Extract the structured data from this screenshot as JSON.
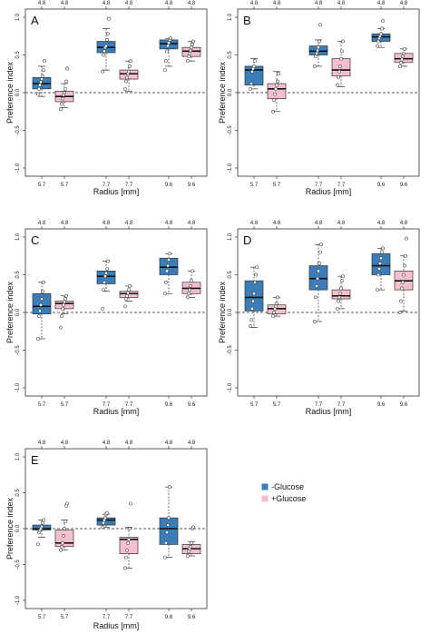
{
  "colors": {
    "minus_glucose": "#3b7db8",
    "plus_glucose": "#f6bfcd",
    "frame": "#333333"
  },
  "legend": {
    "entries": [
      "-Glucose",
      "+Glucose"
    ]
  },
  "chart_data": [
    {
      "type": "box",
      "panel_label": "A",
      "x_categories": [
        "5.7",
        "5.7",
        "7.7",
        "7.7",
        "9.6",
        "9.6"
      ],
      "top_categories": [
        "4.8",
        "4.8",
        "4.8",
        "4.8",
        "4.8",
        "4.8"
      ],
      "xlabel": "Radius [mm]",
      "ylabel": "Preference index",
      "ylim": [
        -1,
        1
      ],
      "yticks": [
        -1.0,
        -0.5,
        0.0,
        0.5,
        1.0
      ],
      "reference_line": 0,
      "boxes": [
        {
          "series": "-Glucose",
          "min": -0.05,
          "q1": 0.05,
          "median": 0.12,
          "q3": 0.2,
          "max": 0.35,
          "points": [
            -0.02,
            0.05,
            0.1,
            0.14,
            0.18,
            0.22,
            0.3,
            0.42
          ]
        },
        {
          "series": "+Glucose",
          "min": -0.2,
          "q1": -0.12,
          "median": -0.05,
          "q3": 0.02,
          "max": 0.12,
          "points": [
            -0.22,
            -0.15,
            -0.08,
            -0.03,
            0.0,
            0.05,
            0.15,
            0.32
          ]
        },
        {
          "series": "-Glucose",
          "min": 0.3,
          "q1": 0.53,
          "median": 0.6,
          "q3": 0.68,
          "max": 0.85,
          "points": [
            0.28,
            0.5,
            0.55,
            0.6,
            0.62,
            0.7,
            0.78,
            0.98
          ]
        },
        {
          "series": "+Glucose",
          "min": 0.02,
          "q1": 0.18,
          "median": 0.25,
          "q3": 0.3,
          "max": 0.42,
          "points": [
            0.05,
            0.15,
            0.2,
            0.25,
            0.28,
            0.35,
            0.42
          ]
        },
        {
          "series": "-Glucose",
          "min": 0.35,
          "q1": 0.58,
          "median": 0.65,
          "q3": 0.7,
          "max": 0.72,
          "points": [
            0.3,
            0.42,
            0.55,
            0.62,
            0.66,
            0.7,
            0.72
          ]
        },
        {
          "series": "+Glucose",
          "min": 0.42,
          "q1": 0.48,
          "median": 0.55,
          "q3": 0.6,
          "max": 0.68,
          "points": [
            0.42,
            0.48,
            0.52,
            0.56,
            0.6,
            0.64,
            0.68
          ]
        }
      ]
    },
    {
      "type": "box",
      "panel_label": "B",
      "x_categories": [
        "5.7",
        "5.7",
        "7.7",
        "7.7",
        "9.6",
        "9.6"
      ],
      "top_categories": [
        "4.8",
        "4.8",
        "4.8",
        "4.8",
        "4.8",
        "4.8"
      ],
      "xlabel": "Radius [mm]",
      "ylabel": "Preference index",
      "ylim": [
        -1,
        1
      ],
      "yticks": [
        -1.0,
        -0.5,
        0.0,
        0.5,
        1.0
      ],
      "reference_line": 0,
      "boxes": [
        {
          "series": "-Glucose",
          "min": 0.05,
          "q1": 0.1,
          "median": 0.3,
          "q3": 0.35,
          "max": 0.45,
          "points": [
            0.05,
            0.12,
            0.28,
            0.32,
            0.35,
            0.42
          ]
        },
        {
          "series": "+Glucose",
          "min": -0.25,
          "q1": -0.08,
          "median": 0.05,
          "q3": 0.12,
          "max": 0.28,
          "points": [
            -0.25,
            -0.1,
            -0.02,
            0.05,
            0.1,
            0.15,
            0.25
          ]
        },
        {
          "series": "-Glucose",
          "min": 0.35,
          "q1": 0.5,
          "median": 0.55,
          "q3": 0.62,
          "max": 0.7,
          "points": [
            0.35,
            0.48,
            0.52,
            0.56,
            0.6,
            0.68,
            0.9
          ]
        },
        {
          "series": "+Glucose",
          "min": 0.08,
          "q1": 0.22,
          "median": 0.3,
          "q3": 0.45,
          "max": 0.68,
          "points": [
            0.1,
            0.2,
            0.28,
            0.35,
            0.45,
            0.55,
            0.68
          ]
        },
        {
          "series": "-Glucose",
          "min": 0.6,
          "q1": 0.68,
          "median": 0.74,
          "q3": 0.78,
          "max": 0.85,
          "points": [
            0.62,
            0.68,
            0.72,
            0.75,
            0.78,
            0.85,
            0.95
          ]
        },
        {
          "series": "+Glucose",
          "min": 0.35,
          "q1": 0.4,
          "median": 0.45,
          "q3": 0.52,
          "max": 0.58,
          "points": [
            0.35,
            0.4,
            0.44,
            0.48,
            0.52,
            0.58
          ]
        }
      ]
    },
    {
      "type": "box",
      "panel_label": "C",
      "x_categories": [
        "5.7",
        "5.7",
        "7.7",
        "7.7",
        "9.6",
        "9.6"
      ],
      "top_categories": [
        "4.8",
        "4.8",
        "4.8",
        "4.8",
        "4.8",
        "4.8"
      ],
      "xlabel": "Radius [mm]",
      "ylabel": "Preference index",
      "ylim": [
        -1,
        1
      ],
      "yticks": [
        -1.0,
        -0.5,
        0.0,
        0.5,
        1.0
      ],
      "reference_line": 0,
      "boxes": [
        {
          "series": "-Glucose",
          "min": -0.35,
          "q1": -0.02,
          "median": 0.08,
          "q3": 0.25,
          "max": 0.4,
          "points": [
            -0.35,
            -0.05,
            0.02,
            0.1,
            0.18,
            0.28,
            0.4
          ]
        },
        {
          "series": "+Glucose",
          "min": -0.02,
          "q1": 0.05,
          "median": 0.12,
          "q3": 0.15,
          "max": 0.22,
          "points": [
            -0.2,
            -0.05,
            0.05,
            0.1,
            0.14,
            0.18,
            0.22
          ]
        },
        {
          "series": "-Glucose",
          "min": 0.28,
          "q1": 0.38,
          "median": 0.48,
          "q3": 0.55,
          "max": 0.68,
          "points": [
            0.05,
            0.3,
            0.4,
            0.48,
            0.52,
            0.58,
            0.68
          ]
        },
        {
          "series": "+Glucose",
          "min": 0.15,
          "q1": 0.2,
          "median": 0.25,
          "q3": 0.28,
          "max": 0.35,
          "points": [
            0.08,
            0.18,
            0.22,
            0.26,
            0.3,
            0.35
          ]
        },
        {
          "series": "-Glucose",
          "min": 0.25,
          "q1": 0.5,
          "median": 0.6,
          "q3": 0.72,
          "max": 0.78,
          "points": [
            0.25,
            0.4,
            0.55,
            0.62,
            0.7,
            0.78
          ]
        },
        {
          "series": "+Glucose",
          "min": 0.2,
          "q1": 0.25,
          "median": 0.32,
          "q3": 0.4,
          "max": 0.55,
          "points": [
            0.2,
            0.25,
            0.3,
            0.35,
            0.42,
            0.55
          ]
        }
      ]
    },
    {
      "type": "box",
      "panel_label": "D",
      "x_categories": [
        "5.7",
        "5.7",
        "7.7",
        "7.7",
        "9.6",
        "9.6"
      ],
      "top_categories": [
        "4.8",
        "4.8",
        "4.8",
        "4.8",
        "4.8",
        "4.8"
      ],
      "xlabel": "Radius [mm]",
      "ylabel": "Preference index",
      "ylim": [
        -1,
        1
      ],
      "yticks": [
        -1.0,
        -0.5,
        0.0,
        0.5,
        1.0
      ],
      "reference_line": 0,
      "boxes": [
        {
          "series": "-Glucose",
          "min": -0.2,
          "q1": 0.02,
          "median": 0.2,
          "q3": 0.42,
          "max": 0.6,
          "points": [
            -0.18,
            -0.1,
            0.05,
            0.15,
            0.25,
            0.4,
            0.5,
            0.6
          ]
        },
        {
          "series": "+Glucose",
          "min": -0.05,
          "q1": -0.02,
          "median": 0.05,
          "q3": 0.1,
          "max": 0.2,
          "points": [
            -0.05,
            0.0,
            0.05,
            0.08,
            0.12,
            0.2
          ]
        },
        {
          "series": "-Glucose",
          "min": -0.12,
          "q1": 0.3,
          "median": 0.45,
          "q3": 0.62,
          "max": 0.9,
          "points": [
            -0.12,
            0.2,
            0.35,
            0.45,
            0.55,
            0.65,
            0.8,
            0.9
          ]
        },
        {
          "series": "+Glucose",
          "min": 0.05,
          "q1": 0.18,
          "median": 0.22,
          "q3": 0.3,
          "max": 0.48,
          "points": [
            0.05,
            0.15,
            0.2,
            0.25,
            0.32,
            0.42,
            0.48
          ]
        },
        {
          "series": "-Glucose",
          "min": 0.3,
          "q1": 0.5,
          "median": 0.62,
          "q3": 0.78,
          "max": 0.85,
          "points": [
            0.3,
            0.5,
            0.58,
            0.65,
            0.72,
            0.8,
            0.85
          ]
        },
        {
          "series": "+Glucose",
          "min": 0.02,
          "q1": 0.3,
          "median": 0.42,
          "q3": 0.55,
          "max": 0.75,
          "points": [
            0.0,
            0.15,
            0.32,
            0.4,
            0.5,
            0.62,
            0.75,
            0.98
          ]
        }
      ]
    },
    {
      "type": "box",
      "panel_label": "E",
      "x_categories": [
        "5.7",
        "5.7",
        "7.7",
        "7.7",
        "9.6",
        "9.6"
      ],
      "top_categories": [
        "4.8",
        "4.8",
        "4.8",
        "4.8",
        "4.8",
        "4.8"
      ],
      "xlabel": "Radius [mm]",
      "ylabel": "Preference index",
      "ylim": [
        -1,
        1
      ],
      "yticks": [
        -1.0,
        -0.5,
        0.0,
        0.5,
        1.0
      ],
      "reference_line": 0,
      "boxes": [
        {
          "series": "-Glucose",
          "min": -0.12,
          "q1": -0.02,
          "median": 0.0,
          "q3": 0.05,
          "max": 0.12,
          "points": [
            -0.22,
            -0.05,
            -0.02,
            0.0,
            0.03,
            0.08,
            0.12
          ]
        },
        {
          "series": "+Glucose",
          "min": -0.3,
          "q1": -0.25,
          "median": -0.2,
          "q3": -0.02,
          "max": 0.12,
          "points": [
            -0.3,
            -0.25,
            -0.2,
            -0.1,
            0.0,
            0.1,
            0.32,
            0.35
          ]
        },
        {
          "series": "-Glucose",
          "min": 0.02,
          "q1": 0.05,
          "median": 0.12,
          "q3": 0.15,
          "max": 0.2,
          "points": [
            0.02,
            0.08,
            0.12,
            0.15,
            0.2,
            0.22
          ]
        },
        {
          "series": "+Glucose",
          "min": -0.55,
          "q1": -0.35,
          "median": -0.15,
          "q3": -0.12,
          "max": 0.02,
          "points": [
            -0.55,
            -0.4,
            -0.3,
            -0.2,
            -0.15,
            0.0,
            0.35
          ]
        },
        {
          "series": "-Glucose",
          "min": -0.4,
          "q1": -0.22,
          "median": 0.0,
          "q3": 0.15,
          "max": 0.58,
          "points": [
            -0.4,
            -0.2,
            -0.05,
            0.05,
            0.15,
            0.58
          ]
        },
        {
          "series": "+Glucose",
          "min": -0.38,
          "q1": -0.35,
          "median": -0.28,
          "q3": -0.22,
          "max": -0.18,
          "points": [
            -0.38,
            -0.32,
            -0.28,
            -0.25,
            -0.2,
            0.0,
            0.02
          ]
        }
      ]
    }
  ]
}
